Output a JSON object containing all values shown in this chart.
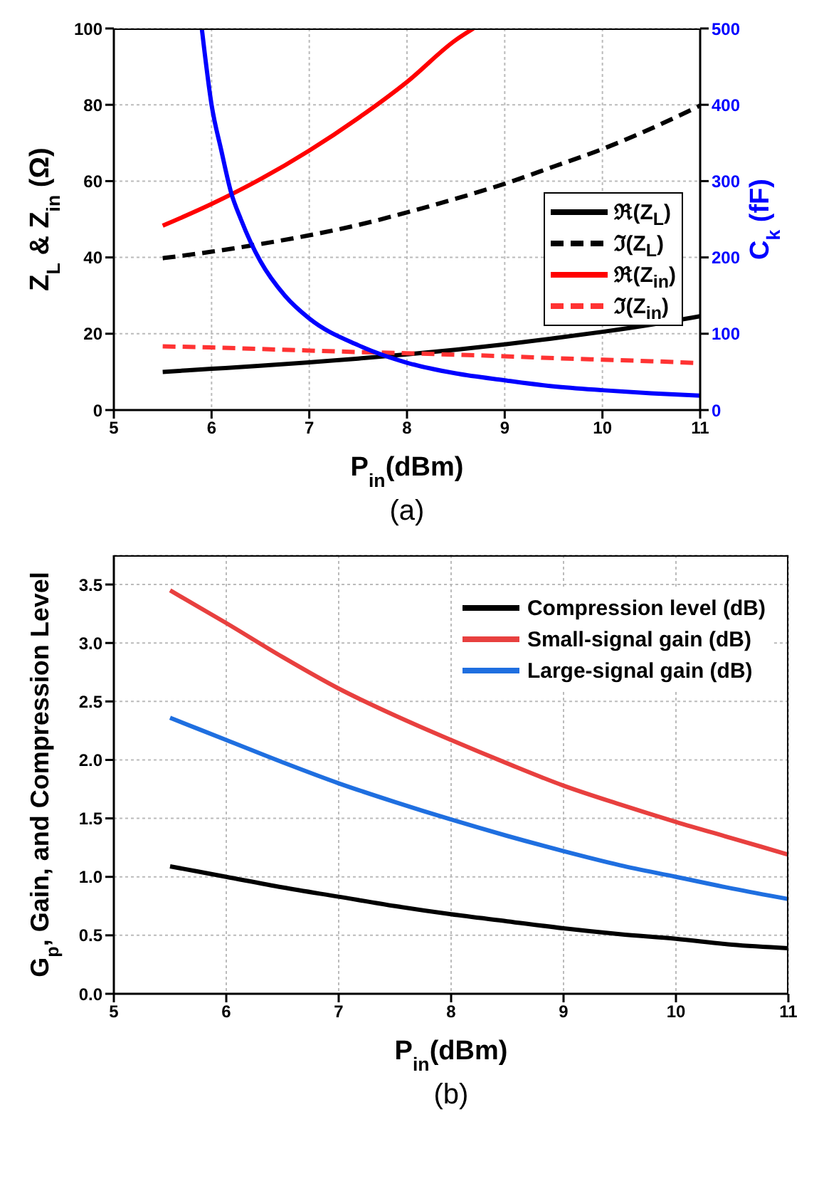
{
  "chart_data": [
    {
      "type": "line",
      "xlabel": "P$_{in}$(dBm)",
      "ylabel": "Z$_{L}$ & Z$_{in}$ (Ω)",
      "y2label": "C$_{k}$ (fF)",
      "annotations": [
        "(a)"
      ],
      "x": [
        5.5,
        6,
        6.5,
        7,
        7.5,
        8,
        8.5,
        9,
        9.5,
        10,
        10.5,
        11
      ],
      "xlim": [
        5,
        11
      ],
      "xticks": [
        5,
        6,
        7,
        8,
        9,
        10,
        11
      ],
      "ylim": [
        0,
        100
      ],
      "yticks": [
        0,
        20,
        40,
        60,
        80,
        100
      ],
      "y2lim": [
        0,
        500
      ],
      "y2ticks": [
        0,
        100,
        200,
        300,
        400,
        500
      ],
      "grid": true,
      "legend": "right",
      "series": [
        {
          "name": "ℜ(Z$_{L}$)",
          "color": "#000000",
          "line_style": "solid",
          "values": [
            10,
            10.8,
            11.6,
            12.5,
            13.5,
            14.6,
            15.8,
            17.2,
            18.8,
            20.5,
            22.4,
            24.6
          ]
        },
        {
          "name": "ℑ(Z$_{L}$)",
          "color": "#000000",
          "line_style": "dashed",
          "values": [
            39.8,
            41.5,
            43.5,
            45.8,
            48.5,
            51.8,
            55.4,
            59.3,
            63.8,
            68.4,
            73.8,
            79.8
          ]
        },
        {
          "name": "ℜ(Z$_{in}$)",
          "color": "#ff0000",
          "line_style": "solid",
          "x": [
            5.5,
            6,
            6.5,
            7,
            7.5,
            8,
            8.5,
            8.68
          ],
          "values": [
            48.3,
            54,
            60.5,
            68,
            76.5,
            86,
            97,
            100
          ]
        },
        {
          "name": "ℑ(Z$_{in}$)",
          "color": "#ff3333",
          "line_style": "dashed",
          "values": [
            16.7,
            16.4,
            16,
            15.6,
            15.2,
            14.9,
            14.5,
            14.1,
            13.6,
            13.2,
            12.8,
            12.3
          ]
        },
        {
          "color": "#0000ff",
          "line_style": "solid",
          "axis": "y2",
          "x": [
            5.9,
            6,
            6.1,
            6.2,
            6.3,
            6.4,
            6.5,
            6.75,
            7,
            7.5,
            8,
            8.5,
            9,
            9.5,
            10,
            10.5,
            11
          ],
          "values": [
            500,
            400,
            340,
            285,
            250,
            220,
            195,
            150,
            120,
            85,
            62,
            48,
            39,
            31,
            26,
            22,
            19
          ]
        }
      ]
    },
    {
      "type": "line",
      "xlabel": "P$_{in}$(dBm)",
      "ylabel": "G$_{p}$, Gain, and Compression Level",
      "annotations": [
        "(b)"
      ],
      "x": [
        5.5,
        6,
        6.5,
        7,
        7.5,
        8,
        8.5,
        9,
        9.5,
        10,
        10.5,
        11
      ],
      "xlim": [
        5,
        11
      ],
      "xticks": [
        5,
        6,
        7,
        8,
        9,
        10,
        11
      ],
      "ylim": [
        0,
        3.75
      ],
      "yticks": [
        {
          "value": 0,
          "label": "0.0"
        },
        {
          "value": 0.5,
          "label": "0.5"
        },
        {
          "value": 1,
          "label": "1.0"
        },
        {
          "value": 1.5,
          "label": "1.5"
        },
        {
          "value": 2,
          "label": "2.0"
        },
        {
          "value": 2.5,
          "label": "2.5"
        },
        {
          "value": 3,
          "label": "3.0"
        },
        {
          "value": 3.5,
          "label": "3.5"
        }
      ],
      "grid": true,
      "legend": "top right",
      "series": [
        {
          "name": "Compression level (dB)",
          "color": "#000000",
          "values": [
            1.09,
            1,
            0.91,
            0.83,
            0.75,
            0.68,
            0.62,
            0.56,
            0.51,
            0.47,
            0.42,
            0.39
          ]
        },
        {
          "name": "Small-signal gain (dB)",
          "color": "#e8403f",
          "values": [
            3.45,
            3.17,
            2.88,
            2.61,
            2.38,
            2.17,
            1.97,
            1.78,
            1.62,
            1.47,
            1.33,
            1.19
          ]
        },
        {
          "name": "Large-signal gain (dB)",
          "color": "#1f6fe0",
          "values": [
            2.36,
            2.17,
            1.98,
            1.8,
            1.64,
            1.49,
            1.35,
            1.22,
            1.1,
            1,
            0.9,
            0.81
          ]
        }
      ]
    }
  ]
}
